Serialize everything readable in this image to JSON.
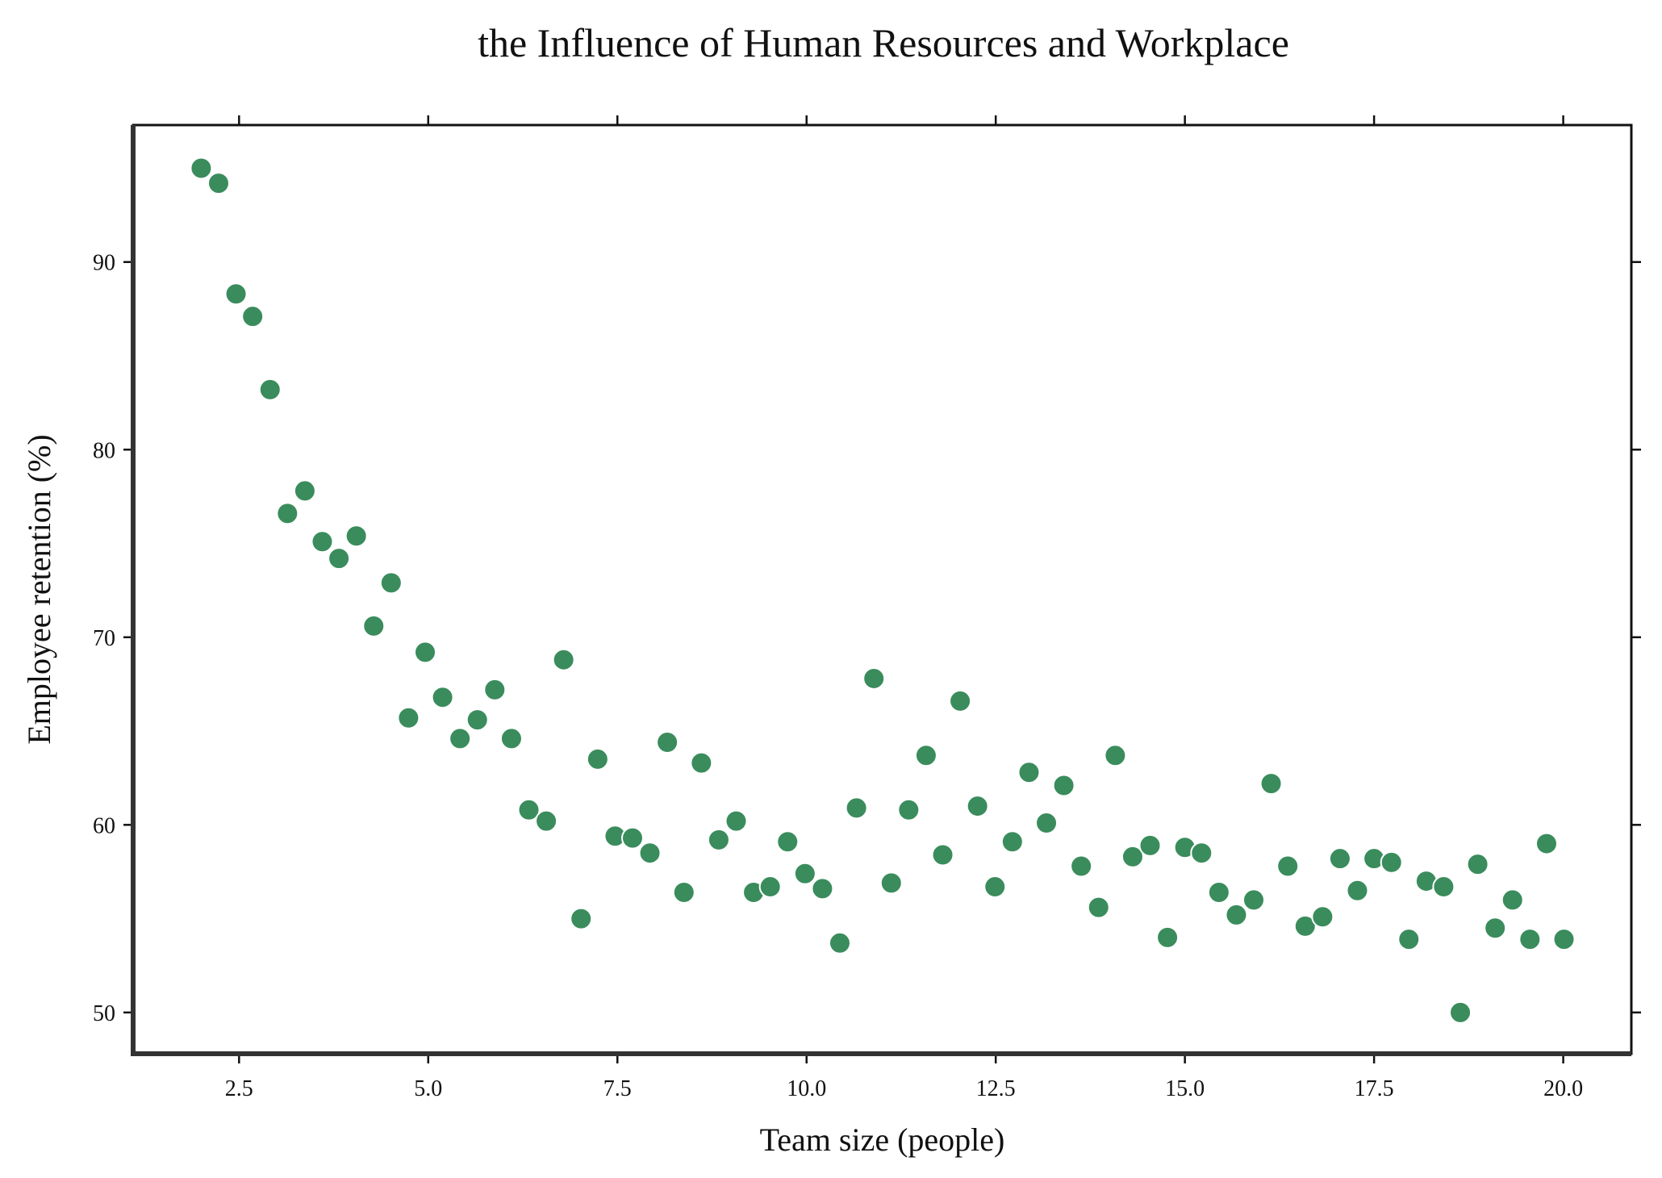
{
  "chart_data": {
    "type": "scatter",
    "title": "the Influence of Human Resources and Workplace",
    "xlabel": "Team size (people)",
    "ylabel": "Employee retention (%)",
    "xlim": [
      1.1,
      20.9
    ],
    "ylim": [
      47.8,
      97.3
    ],
    "xticks": [
      2.5,
      5.0,
      7.5,
      10.0,
      12.5,
      15.0,
      17.5,
      20.0
    ],
    "xtick_labels": [
      "2.5",
      "5.0",
      "7.5",
      "10.0",
      "12.5",
      "15.0",
      "17.5",
      "20.0"
    ],
    "yticks": [
      50,
      60,
      70,
      80,
      90
    ],
    "ytick_labels": [
      "50",
      "60",
      "70",
      "80",
      "90"
    ],
    "grid": false,
    "marker_color": "#3a8c5c",
    "marker_edge_color": "#ffffff",
    "series": [
      {
        "x": [
          2.0,
          2.23,
          2.46,
          2.68,
          2.91,
          3.14,
          3.37,
          3.6,
          3.82,
          4.05,
          4.28,
          4.51,
          4.74,
          4.96,
          5.19,
          5.42,
          5.65,
          5.88,
          6.1,
          6.33,
          6.56,
          6.79,
          7.02,
          7.24,
          7.47,
          7.7,
          7.93,
          8.16,
          8.38,
          8.61,
          8.84,
          9.07,
          9.3,
          9.52,
          9.75,
          9.98,
          10.21,
          10.44,
          10.66,
          10.89,
          11.12,
          11.35,
          11.58,
          11.8,
          12.03,
          12.26,
          12.49,
          12.72,
          12.94,
          13.17,
          13.4,
          13.63,
          13.86,
          14.08,
          14.31,
          14.54,
          14.77,
          15.0,
          15.22,
          15.45,
          15.68,
          15.91,
          16.14,
          16.36,
          16.59,
          16.82,
          17.05,
          17.28,
          17.5,
          17.73,
          17.96,
          18.19,
          18.42,
          18.64,
          18.87,
          19.1,
          19.33,
          19.56,
          19.78,
          20.01
        ],
        "y": [
          95.0,
          94.2,
          88.3,
          87.1,
          83.2,
          76.6,
          77.8,
          75.1,
          74.2,
          75.4,
          70.6,
          72.9,
          65.7,
          69.2,
          66.8,
          64.6,
          65.6,
          67.2,
          64.6,
          60.8,
          60.2,
          68.8,
          55.0,
          63.5,
          59.4,
          59.3,
          58.5,
          64.4,
          56.4,
          63.3,
          59.2,
          60.2,
          56.4,
          56.7,
          59.1,
          57.4,
          56.6,
          53.7,
          60.9,
          67.8,
          56.9,
          60.8,
          63.7,
          58.4,
          66.6,
          61.0,
          56.7,
          59.1,
          62.8,
          60.1,
          62.1,
          57.8,
          55.6,
          63.7,
          58.3,
          58.9,
          54.0,
          58.8,
          58.5,
          56.4,
          55.2,
          56.0,
          62.2,
          57.8,
          54.6,
          55.1,
          58.2,
          56.5,
          58.2,
          58.0,
          53.9,
          57.0,
          56.7,
          50.0,
          57.9,
          54.5,
          56.0,
          53.9,
          59.0,
          53.9
        ]
      }
    ]
  }
}
